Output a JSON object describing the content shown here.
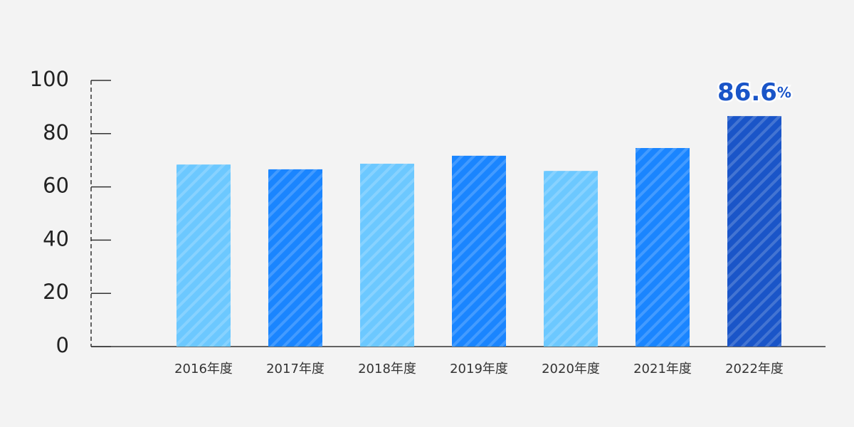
{
  "chart_data": {
    "type": "bar",
    "categories": [
      "2016年度",
      "2017年度",
      "2018年度",
      "2019年度",
      "2020年度",
      "2021年度",
      "2022年度"
    ],
    "values": [
      68.4,
      66.6,
      68.7,
      71.7,
      66.0,
      74.6,
      86.6
    ],
    "value_labels": [
      null,
      null,
      null,
      null,
      null,
      null,
      "86.6%"
    ],
    "colors": [
      "#6cc8ff",
      "#1a85ff",
      "#6cc8ff",
      "#1a85ff",
      "#6cc8ff",
      "#1a85ff",
      "#1a55c8"
    ],
    "ylim": [
      0,
      100
    ],
    "yticks": [
      0,
      20,
      40,
      60,
      80,
      100
    ],
    "grid": false
  }
}
